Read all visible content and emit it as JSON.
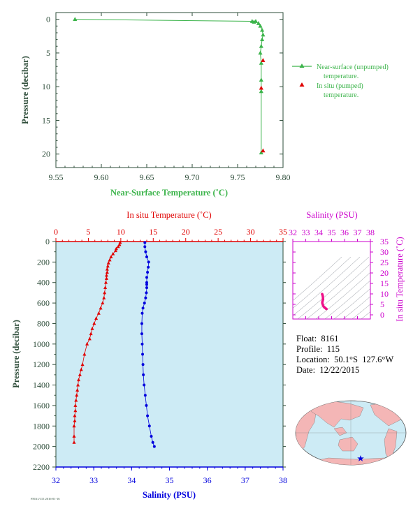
{
  "chart_data": [
    {
      "type": "line",
      "xlabel": "Near-Surface Temperature (˚C)",
      "ylabel": "Pressure (decibar)",
      "xlim": [
        9.55,
        9.8
      ],
      "ylim": [
        22,
        -1
      ],
      "xticks": [
        "9.55",
        "9.60",
        "9.65",
        "9.70",
        "9.75",
        "9.80"
      ],
      "yticks": [
        "0",
        "5",
        "10",
        "15",
        "20"
      ],
      "grid": false,
      "legend_position": "right",
      "series": [
        {
          "name": "Near-surface (unpumped) temperature.",
          "marker": "triangle",
          "color": "#3cb44b",
          "x": [
            9.571,
            9.766,
            9.768,
            9.77,
            9.773,
            9.775,
            9.777,
            9.778,
            9.777,
            9.776,
            9.775,
            9.776,
            9.776,
            9.776,
            9.776
          ],
          "y": [
            0.0,
            0.3,
            0.4,
            0.3,
            0.6,
            1.0,
            1.6,
            2.3,
            3.0,
            4.0,
            5.0,
            6.5,
            9.0,
            10.7,
            19.8
          ]
        },
        {
          "name": "In situ (pumped) temperature.",
          "marker": "triangle",
          "color": "#e00000",
          "x": [
            9.778,
            9.776,
            9.778
          ],
          "y": [
            6.1,
            10.2,
            19.5
          ]
        }
      ]
    },
    {
      "type": "line",
      "ylabel": "Pressure (decibar)",
      "top_axis": {
        "label": "In situ Temperature (˚C)",
        "lim": [
          0,
          35
        ],
        "ticks": [
          "0",
          "5",
          "10",
          "15",
          "20",
          "25",
          "30",
          "35"
        ]
      },
      "bottom_axis": {
        "label": "Salinity (PSU)",
        "lim": [
          32,
          38
        ],
        "ticks": [
          "32",
          "33",
          "34",
          "35",
          "36",
          "37",
          "38"
        ]
      },
      "ylim": [
        2200,
        0
      ],
      "yticks": [
        "0",
        "200",
        "400",
        "600",
        "800",
        "1000",
        "1200",
        "1400",
        "1600",
        "1800",
        "2000",
        "2200"
      ],
      "background": "#cdebf5",
      "series": [
        {
          "name": "temperature",
          "color": "#e00000",
          "marker": "triangle",
          "x": [
            9.9,
            9.8,
            9.6,
            9.3,
            9.2,
            8.8,
            8.5,
            8.3,
            8.1,
            8.0,
            7.9,
            7.9,
            7.8,
            7.8,
            7.7,
            7.6,
            7.5,
            7.4,
            7.2,
            6.9,
            6.6,
            6.2,
            5.9,
            5.6,
            5.4,
            5.2,
            4.8,
            4.4,
            4.1,
            3.9,
            3.7,
            3.5,
            3.4,
            3.3,
            3.2,
            3.1,
            3.0,
            3.0,
            2.9,
            2.9,
            2.8,
            2.8,
            2.8
          ],
          "y": [
            10,
            30,
            50,
            70,
            90,
            120,
            150,
            180,
            210,
            240,
            270,
            300,
            330,
            360,
            400,
            450,
            500,
            550,
            600,
            650,
            700,
            750,
            800,
            850,
            900,
            950,
            1000,
            1100,
            1200,
            1250,
            1300,
            1350,
            1400,
            1450,
            1500,
            1550,
            1600,
            1650,
            1700,
            1750,
            1800,
            1900,
            1960
          ]
        },
        {
          "name": "salinity",
          "color": "#0000dd",
          "marker": "circle",
          "x": [
            34.35,
            34.35,
            34.37,
            34.4,
            34.45,
            34.44,
            34.42,
            34.4,
            34.4,
            34.4,
            34.4,
            34.39,
            34.37,
            34.34,
            34.3,
            34.28,
            34.27,
            34.27,
            34.28,
            34.29,
            34.3,
            34.31,
            34.33,
            34.36,
            34.39,
            34.42,
            34.47,
            34.52,
            34.56,
            34.6
          ],
          "y": [
            10,
            50,
            100,
            150,
            200,
            250,
            300,
            350,
            400,
            420,
            450,
            500,
            550,
            600,
            650,
            700,
            800,
            900,
            1000,
            1100,
            1200,
            1300,
            1400,
            1500,
            1600,
            1700,
            1800,
            1900,
            1960,
            2000
          ]
        }
      ]
    },
    {
      "type": "scatter",
      "top_axis": {
        "label": "Salinity (PSU)",
        "lim": [
          32,
          38
        ],
        "ticks": [
          "32",
          "33",
          "34",
          "35",
          "36",
          "37",
          "38"
        ]
      },
      "right_axis": {
        "label": "In situ Temperature (˚C)",
        "lim": [
          -2,
          35
        ],
        "ticks": [
          "0",
          "5",
          "10",
          "15",
          "20",
          "25",
          "30",
          "35"
        ]
      },
      "series": [
        {
          "name": "T-S",
          "color": "#ee1188",
          "x": [
            34.27,
            34.3,
            34.32,
            34.33,
            34.34,
            34.32,
            34.3,
            34.28,
            34.29,
            34.33,
            34.38,
            34.44,
            34.5,
            34.56,
            34.6
          ],
          "y": [
            9.9,
            9.4,
            8.9,
            8.0,
            7.4,
            7.0,
            6.5,
            6.0,
            5.4,
            4.7,
            4.0,
            3.6,
            3.3,
            3.0,
            2.8
          ]
        }
      ]
    }
  ],
  "info": {
    "float": "Float:  8161",
    "profile": "Profile:  115",
    "location": "Location:  50.1°S  127.6°W",
    "date": "Date:  12/22/2015"
  },
  "footer_code": "F8161/115   2016-01-16",
  "colors": {
    "near_surface": "#3cb44b",
    "in_situ": "#e00000",
    "salinity": "#0000dd",
    "ts_axis": "#cc00cc",
    "plot_bg": "#cdebf5",
    "axis_text": "#2e4d3a"
  }
}
